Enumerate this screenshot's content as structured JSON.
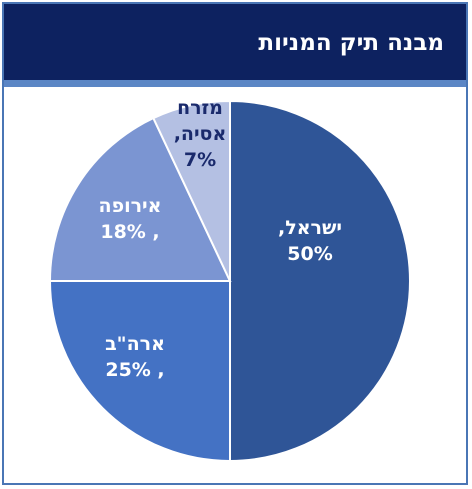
{
  "title": "מבנה תיק המניות",
  "chart_data": {
    "type": "pie",
    "start_angle_deg": 0,
    "direction": "clockwise",
    "slices": [
      {
        "label": "ישראל,",
        "value_text": "50%",
        "value": 50,
        "color": "#2f5597",
        "label_color": "#ffffff"
      },
      {
        "label": "ארה\"ב",
        "value_text": "25% ,",
        "value": 25,
        "color": "#4472c4",
        "label_color": "#ffffff"
      },
      {
        "label": "אירופה",
        "value_text": "18% ,",
        "value": 18,
        "color": "#7b95d2",
        "label_color": "#ffffff"
      },
      {
        "label": "מזרח",
        "label2": "אסיה,",
        "value_text": "7%",
        "value": 7,
        "color": "#b4c0e3",
        "label_color": "#1a2a6c"
      }
    ]
  }
}
